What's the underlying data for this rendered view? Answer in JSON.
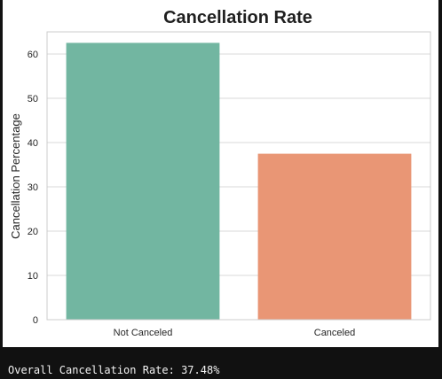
{
  "chart_data": {
    "type": "bar",
    "title": "Cancellation Rate",
    "xlabel": "",
    "ylabel": "Cancellation Percentage",
    "categories": [
      "Not Canceled",
      "Canceled"
    ],
    "values": [
      62.52,
      37.48
    ],
    "ylim": [
      0,
      65
    ],
    "yticks": [
      0,
      10,
      20,
      30,
      40,
      50,
      60
    ],
    "grid": "horizontal",
    "colors": [
      "#72b6a1",
      "#e99675"
    ]
  },
  "console": {
    "output_line": "Overall Cancellation Rate: 37.48%"
  }
}
